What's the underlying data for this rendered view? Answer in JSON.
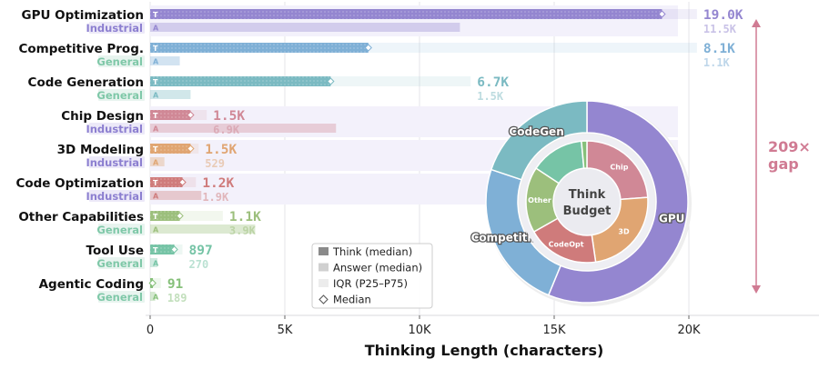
{
  "chart_data": {
    "type": "bar",
    "orientation": "horizontal",
    "xlabel": "Thinking Length (characters)",
    "xlim": [
      0,
      24500
    ],
    "xticks": [
      0,
      5000,
      10000,
      15000,
      20000
    ],
    "xtick_labels": [
      "0",
      "5K",
      "10K",
      "15K",
      "20K"
    ],
    "grid": true,
    "categories": [
      {
        "name": "GPU Optimization",
        "tag": "Industrial",
        "color": "#9486d0",
        "think_median": 19000,
        "think_label": "19.0K",
        "answer_median": 11500,
        "answer_label": "11.5K",
        "iqr_p75": 20300
      },
      {
        "name": "Competitive Prog.",
        "tag": "General",
        "color": "#7fb0d6",
        "think_median": 8100,
        "think_label": "8.1K",
        "answer_median": 1100,
        "answer_label": "1.1K",
        "iqr_p75": 20300
      },
      {
        "name": "Code Generation",
        "tag": "General",
        "color": "#7bbac2",
        "think_median": 6700,
        "think_label": "6.7K",
        "answer_median": 1500,
        "answer_label": "1.5K",
        "iqr_p75": 11900
      },
      {
        "name": "Chip Design",
        "tag": "Industrial",
        "color": "#d08896",
        "think_median": 1500,
        "think_label": "1.5K",
        "answer_median": 6900,
        "answer_label": "6.9K",
        "iqr_p75": 2100
      },
      {
        "name": "3D Modeling",
        "tag": "Industrial",
        "color": "#e0a572",
        "think_median": 1500,
        "think_label": "1.5K",
        "answer_median": 529,
        "answer_label": "529",
        "iqr_p75": 1800
      },
      {
        "name": "Code Optimization",
        "tag": "Industrial",
        "color": "#cf7b7b",
        "think_median": 1200,
        "think_label": "1.2K",
        "answer_median": 1900,
        "answer_label": "1.9K",
        "iqr_p75": 1700
      },
      {
        "name": "Other Capabilities",
        "tag": "General",
        "color": "#9cbf7c",
        "think_median": 1100,
        "think_label": "1.1K",
        "answer_median": 3900,
        "answer_label": "3.9K",
        "iqr_p75": 2700
      },
      {
        "name": "Tool Use",
        "tag": "General",
        "color": "#76c4a6",
        "think_median": 897,
        "think_label": "897",
        "answer_median": 270,
        "answer_label": "270",
        "iqr_p75": 1200
      },
      {
        "name": "Agentic Coding",
        "tag": "General",
        "color": "#86c07a",
        "think_median": 91,
        "think_label": "91",
        "answer_median": 189,
        "answer_label": "189",
        "iqr_p75": 400
      }
    ],
    "bar_markers": {
      "think": "T",
      "answer": "A"
    },
    "tag_colors": {
      "Industrial": {
        "fg": "#8c7fd0",
        "bg": "#ece9f8"
      },
      "General": {
        "fg": "#7fc8a8",
        "bg": "#e8f4ef"
      }
    },
    "legend": {
      "placement": "bottom-center",
      "items": [
        "Think (median)",
        "Answer (median)",
        "IQR (P25–P75)",
        "Median"
      ]
    },
    "annotation": {
      "text_line1": "209×",
      "text_line2": "gap",
      "color": "#d07b93"
    },
    "donut": {
      "center_line1": "Think",
      "center_line2": "Budget",
      "outer": [
        {
          "label": "GPU",
          "value": 19000,
          "color": "#9486d0"
        },
        {
          "label": "Competitive",
          "value": 8100,
          "color": "#7fb0d6"
        },
        {
          "label": "CodeGen",
          "value": 6700,
          "color": "#7bbac2"
        }
      ],
      "inner": [
        {
          "label": "Chip",
          "value": 1500,
          "color": "#d08896"
        },
        {
          "label": "3D",
          "value": 1500,
          "color": "#e0a572"
        },
        {
          "label": "CodeOpt",
          "value": 1200,
          "color": "#cf7b7b"
        },
        {
          "label": "Other",
          "value": 1100,
          "color": "#9cbf7c"
        },
        {
          "label": "",
          "value": 897,
          "color": "#76c4a6"
        },
        {
          "label": "",
          "value": 91,
          "color": "#86c07a"
        }
      ]
    }
  }
}
